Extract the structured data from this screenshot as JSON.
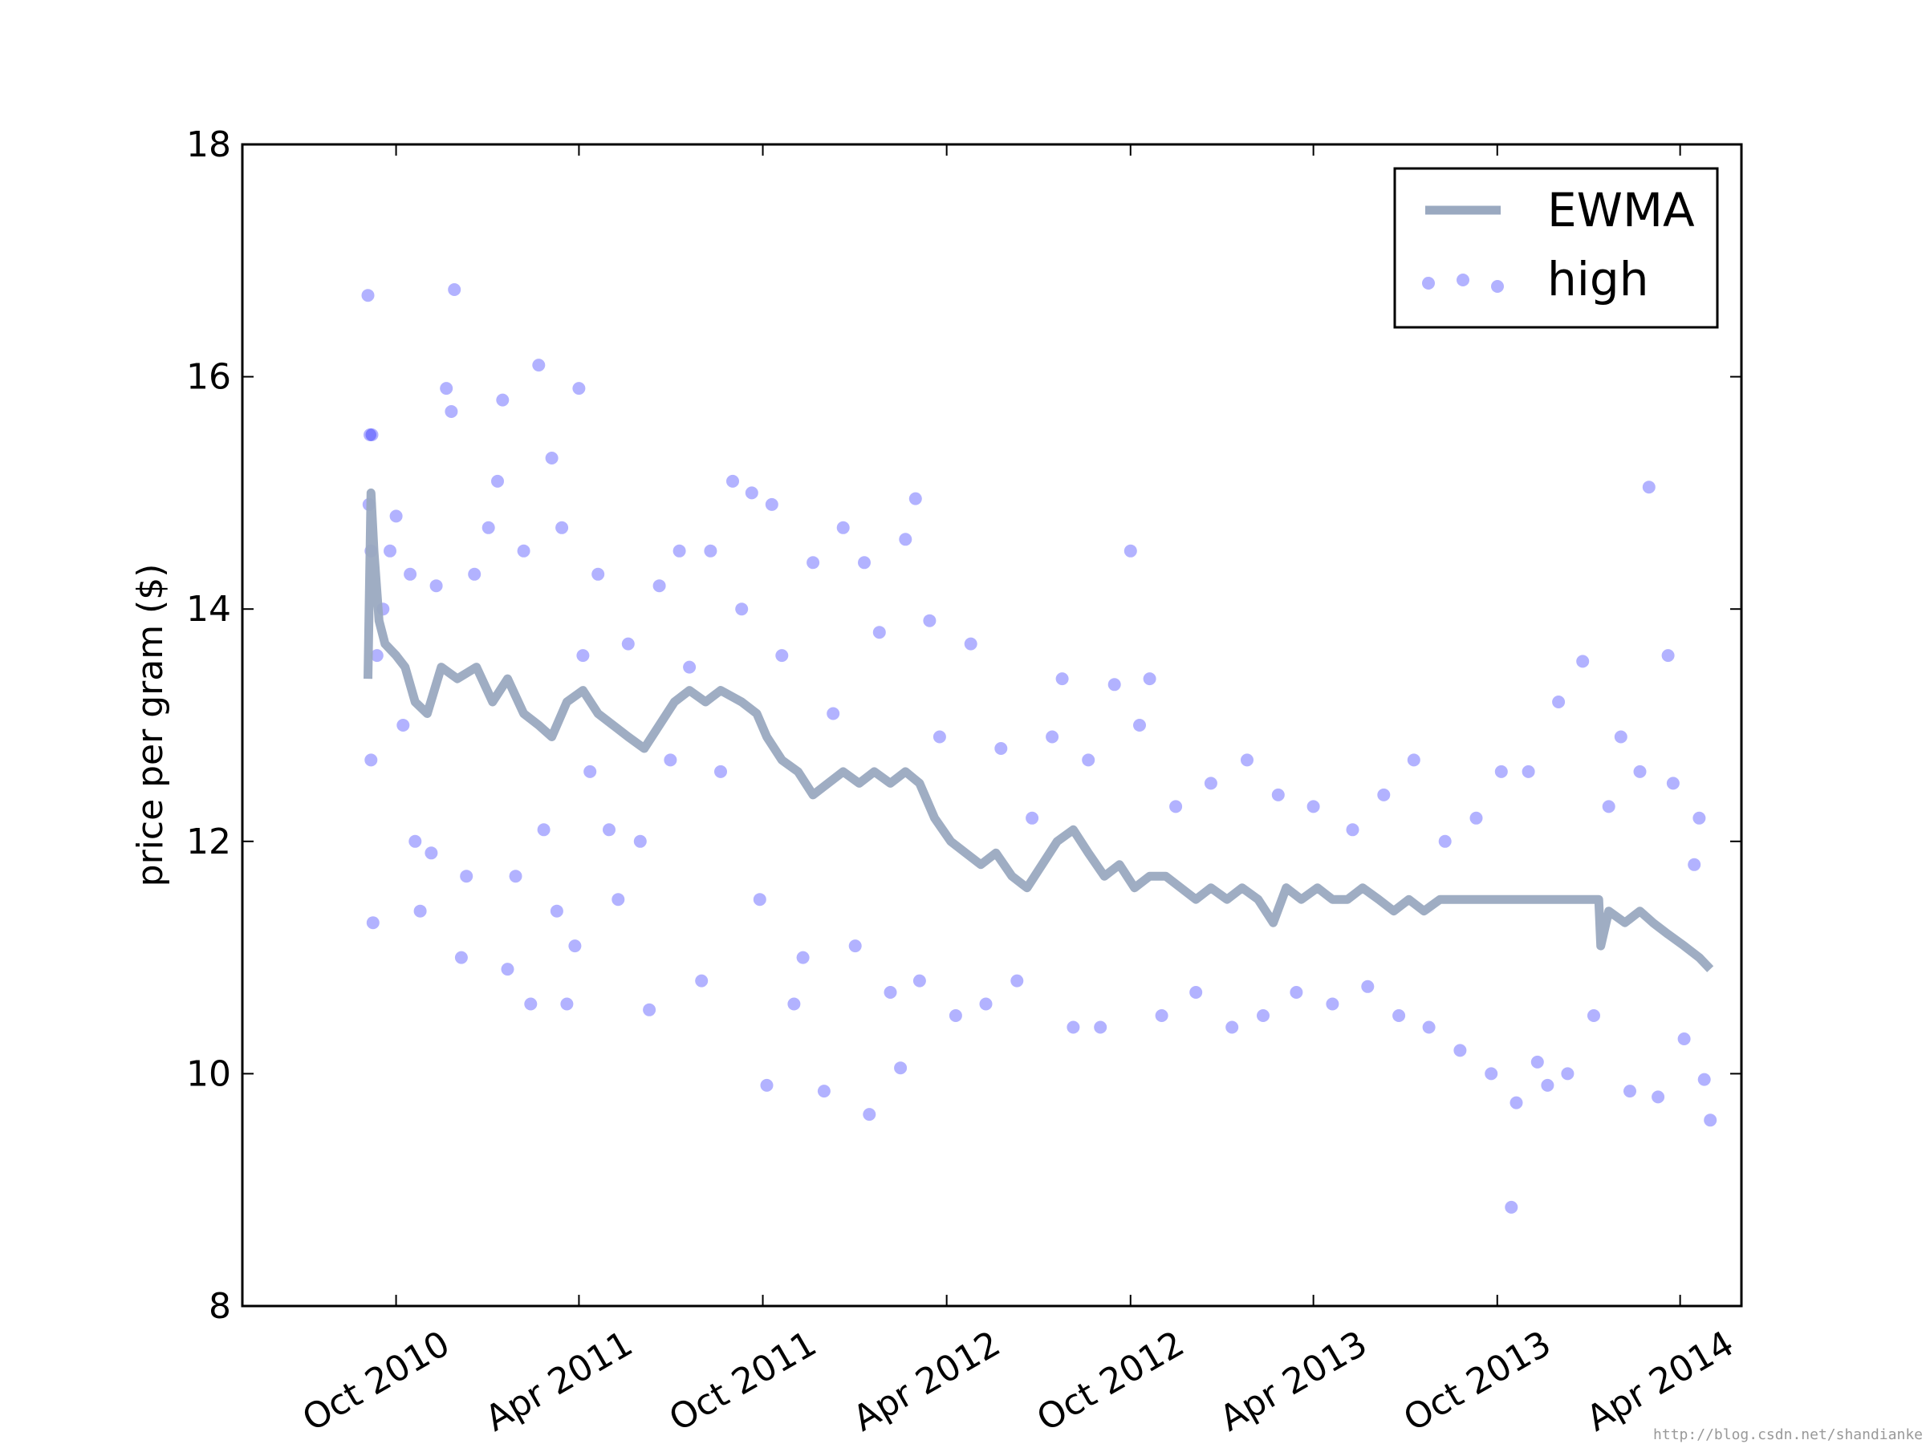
{
  "chart_data": {
    "type": "scatter",
    "title": "",
    "xlabel": "",
    "ylabel": "price per gram ($)",
    "xlim": [
      "2010-05-01",
      "2014-06-01"
    ],
    "ylim": [
      8,
      18
    ],
    "yticks": [
      8,
      10,
      12,
      14,
      16,
      18
    ],
    "xticks": [
      {
        "date": "2010-10-01",
        "label": "Oct 2010"
      },
      {
        "date": "2011-04-01",
        "label": "Apr 2011"
      },
      {
        "date": "2011-10-01",
        "label": "Oct 2011"
      },
      {
        "date": "2012-04-01",
        "label": "Apr 2012"
      },
      {
        "date": "2012-10-01",
        "label": "Oct 2012"
      },
      {
        "date": "2013-04-01",
        "label": "Apr 2013"
      },
      {
        "date": "2013-10-01",
        "label": "Oct 2013"
      },
      {
        "date": "2014-04-01",
        "label": "Apr 2014"
      }
    ],
    "grid": false,
    "legend": "top-right",
    "series": [
      {
        "name": "EWMA",
        "kind": "line",
        "color": "#9aa9c0",
        "points": [
          [
            "2010-09-03",
            13.4
          ],
          [
            "2010-09-06",
            15.0
          ],
          [
            "2010-09-09",
            14.5
          ],
          [
            "2010-09-14",
            13.9
          ],
          [
            "2010-09-20",
            13.7
          ],
          [
            "2010-10-01",
            13.6
          ],
          [
            "2010-10-10",
            13.5
          ],
          [
            "2010-10-20",
            13.2
          ],
          [
            "2010-11-01",
            13.1
          ],
          [
            "2010-11-15",
            13.5
          ],
          [
            "2010-12-01",
            13.4
          ],
          [
            "2010-12-20",
            13.5
          ],
          [
            "2011-01-05",
            13.2
          ],
          [
            "2011-01-20",
            13.4
          ],
          [
            "2011-02-05",
            13.1
          ],
          [
            "2011-02-20",
            13.0
          ],
          [
            "2011-03-05",
            12.9
          ],
          [
            "2011-03-20",
            13.2
          ],
          [
            "2011-04-05",
            13.3
          ],
          [
            "2011-04-20",
            13.1
          ],
          [
            "2011-05-05",
            13.0
          ],
          [
            "2011-05-20",
            12.9
          ],
          [
            "2011-06-05",
            12.8
          ],
          [
            "2011-06-20",
            13.0
          ],
          [
            "2011-07-05",
            13.2
          ],
          [
            "2011-07-20",
            13.3
          ],
          [
            "2011-08-05",
            13.2
          ],
          [
            "2011-08-20",
            13.3
          ],
          [
            "2011-09-10",
            13.2
          ],
          [
            "2011-09-25",
            13.1
          ],
          [
            "2011-10-05",
            12.9
          ],
          [
            "2011-10-20",
            12.7
          ],
          [
            "2011-11-05",
            12.6
          ],
          [
            "2011-11-20",
            12.4
          ],
          [
            "2011-12-05",
            12.5
          ],
          [
            "2011-12-20",
            12.6
          ],
          [
            "2012-01-05",
            12.5
          ],
          [
            "2012-01-20",
            12.6
          ],
          [
            "2012-02-05",
            12.5
          ],
          [
            "2012-02-20",
            12.6
          ],
          [
            "2012-03-05",
            12.5
          ],
          [
            "2012-03-20",
            12.2
          ],
          [
            "2012-04-05",
            12.0
          ],
          [
            "2012-04-20",
            11.9
          ],
          [
            "2012-05-05",
            11.8
          ],
          [
            "2012-05-20",
            11.9
          ],
          [
            "2012-06-05",
            11.7
          ],
          [
            "2012-06-20",
            11.6
          ],
          [
            "2012-07-05",
            11.8
          ],
          [
            "2012-07-20",
            12.0
          ],
          [
            "2012-08-05",
            12.1
          ],
          [
            "2012-08-20",
            11.9
          ],
          [
            "2012-09-05",
            11.7
          ],
          [
            "2012-09-20",
            11.8
          ],
          [
            "2012-10-05",
            11.6
          ],
          [
            "2012-10-20",
            11.7
          ],
          [
            "2012-11-05",
            11.7
          ],
          [
            "2012-11-20",
            11.6
          ],
          [
            "2012-12-05",
            11.5
          ],
          [
            "2012-12-20",
            11.6
          ],
          [
            "2013-01-05",
            11.5
          ],
          [
            "2013-01-20",
            11.6
          ],
          [
            "2013-02-05",
            11.5
          ],
          [
            "2013-02-20",
            11.3
          ],
          [
            "2013-03-05",
            11.6
          ],
          [
            "2013-03-20",
            11.5
          ],
          [
            "2013-04-05",
            11.6
          ],
          [
            "2013-04-20",
            11.5
          ],
          [
            "2013-05-05",
            11.5
          ],
          [
            "2013-05-20",
            11.6
          ],
          [
            "2013-06-05",
            11.5
          ],
          [
            "2013-06-20",
            11.4
          ],
          [
            "2013-07-05",
            11.5
          ],
          [
            "2013-07-20",
            11.4
          ],
          [
            "2013-08-05",
            11.5
          ],
          [
            "2013-08-20",
            11.5
          ],
          [
            "2013-09-20",
            11.5
          ],
          [
            "2013-10-20",
            11.5
          ],
          [
            "2013-11-20",
            11.5
          ],
          [
            "2013-12-20",
            11.5
          ],
          [
            "2014-01-10",
            11.5
          ],
          [
            "2014-01-12",
            11.1
          ],
          [
            "2014-01-20",
            11.4
          ],
          [
            "2014-02-05",
            11.3
          ],
          [
            "2014-02-20",
            11.4
          ],
          [
            "2014-03-05",
            11.3
          ],
          [
            "2014-03-20",
            11.2
          ],
          [
            "2014-04-05",
            11.1
          ],
          [
            "2014-04-20",
            11.0
          ],
          [
            "2014-05-01",
            10.9
          ]
        ]
      },
      {
        "name": "high",
        "kind": "scatter",
        "color": "#0000ff",
        "opacity": 0.3,
        "points": [
          [
            "2010-09-03",
            16.7
          ],
          [
            "2010-09-05",
            15.5
          ],
          [
            "2010-09-07",
            15.5
          ],
          [
            "2010-09-04",
            14.9
          ],
          [
            "2010-09-06",
            14.5
          ],
          [
            "2010-09-06",
            12.7
          ],
          [
            "2010-09-08",
            11.3
          ],
          [
            "2010-09-12",
            13.6
          ],
          [
            "2010-09-18",
            14.0
          ],
          [
            "2010-09-25",
            14.5
          ],
          [
            "2010-10-01",
            14.8
          ],
          [
            "2010-10-08",
            13.0
          ],
          [
            "2010-10-15",
            14.3
          ],
          [
            "2010-10-20",
            12.0
          ],
          [
            "2010-10-25",
            11.4
          ],
          [
            "2010-11-05",
            11.9
          ],
          [
            "2010-11-10",
            14.2
          ],
          [
            "2010-11-20",
            15.9
          ],
          [
            "2010-11-25",
            15.7
          ],
          [
            "2010-11-28",
            16.75
          ],
          [
            "2010-12-05",
            11.0
          ],
          [
            "2010-12-10",
            11.7
          ],
          [
            "2010-12-18",
            14.3
          ],
          [
            "2011-01-01",
            14.7
          ],
          [
            "2011-01-10",
            15.1
          ],
          [
            "2011-01-15",
            15.8
          ],
          [
            "2011-01-20",
            10.9
          ],
          [
            "2011-01-28",
            11.7
          ],
          [
            "2011-02-05",
            14.5
          ],
          [
            "2011-02-12",
            10.6
          ],
          [
            "2011-02-20",
            16.1
          ],
          [
            "2011-02-25",
            12.1
          ],
          [
            "2011-03-05",
            15.3
          ],
          [
            "2011-03-10",
            11.4
          ],
          [
            "2011-03-15",
            14.7
          ],
          [
            "2011-03-20",
            10.6
          ],
          [
            "2011-03-28",
            11.1
          ],
          [
            "2011-04-01",
            15.9
          ],
          [
            "2011-04-05",
            13.6
          ],
          [
            "2011-04-12",
            12.6
          ],
          [
            "2011-04-20",
            14.3
          ],
          [
            "2011-05-01",
            12.1
          ],
          [
            "2011-05-10",
            11.5
          ],
          [
            "2011-05-20",
            13.7
          ],
          [
            "2011-06-01",
            12.0
          ],
          [
            "2011-06-10",
            10.55
          ],
          [
            "2011-06-20",
            14.2
          ],
          [
            "2011-07-01",
            12.7
          ],
          [
            "2011-07-10",
            14.5
          ],
          [
            "2011-07-20",
            13.5
          ],
          [
            "2011-08-01",
            10.8
          ],
          [
            "2011-08-10",
            14.5
          ],
          [
            "2011-08-20",
            12.6
          ],
          [
            "2011-09-01",
            15.1
          ],
          [
            "2011-09-10",
            14.0
          ],
          [
            "2011-09-20",
            15.0
          ],
          [
            "2011-09-28",
            11.5
          ],
          [
            "2011-10-05",
            9.9
          ],
          [
            "2011-10-10",
            14.9
          ],
          [
            "2011-10-20",
            13.6
          ],
          [
            "2011-11-01",
            10.6
          ],
          [
            "2011-11-10",
            11.0
          ],
          [
            "2011-11-20",
            14.4
          ],
          [
            "2011-12-01",
            9.85
          ],
          [
            "2011-12-10",
            13.1
          ],
          [
            "2011-12-20",
            14.7
          ],
          [
            "2012-01-01",
            11.1
          ],
          [
            "2012-01-10",
            14.4
          ],
          [
            "2012-01-15",
            9.65
          ],
          [
            "2012-01-25",
            13.8
          ],
          [
            "2012-02-05",
            10.7
          ],
          [
            "2012-02-15",
            10.05
          ],
          [
            "2012-02-20",
            14.6
          ],
          [
            "2012-03-01",
            14.95
          ],
          [
            "2012-03-05",
            10.8
          ],
          [
            "2012-03-15",
            13.9
          ],
          [
            "2012-03-25",
            12.9
          ],
          [
            "2012-04-10",
            10.5
          ],
          [
            "2012-04-25",
            13.7
          ],
          [
            "2012-05-10",
            10.6
          ],
          [
            "2012-05-25",
            12.8
          ],
          [
            "2012-06-10",
            10.8
          ],
          [
            "2012-06-25",
            12.2
          ],
          [
            "2012-07-15",
            12.9
          ],
          [
            "2012-07-25",
            13.4
          ],
          [
            "2012-08-05",
            10.4
          ],
          [
            "2012-08-20",
            12.7
          ],
          [
            "2012-09-01",
            10.4
          ],
          [
            "2012-09-15",
            13.35
          ],
          [
            "2012-10-01",
            14.5
          ],
          [
            "2012-10-10",
            13.0
          ],
          [
            "2012-10-20",
            13.4
          ],
          [
            "2012-11-01",
            10.5
          ],
          [
            "2012-11-15",
            12.3
          ],
          [
            "2012-12-05",
            10.7
          ],
          [
            "2012-12-20",
            12.5
          ],
          [
            "2013-01-10",
            10.4
          ],
          [
            "2013-01-25",
            12.7
          ],
          [
            "2013-02-10",
            10.5
          ],
          [
            "2013-02-25",
            12.4
          ],
          [
            "2013-03-15",
            10.7
          ],
          [
            "2013-04-01",
            12.3
          ],
          [
            "2013-04-20",
            10.6
          ],
          [
            "2013-05-10",
            12.1
          ],
          [
            "2013-05-25",
            10.75
          ],
          [
            "2013-06-10",
            12.4
          ],
          [
            "2013-06-25",
            10.5
          ],
          [
            "2013-07-10",
            12.7
          ],
          [
            "2013-07-25",
            10.4
          ],
          [
            "2013-08-10",
            12.0
          ],
          [
            "2013-08-25",
            10.2
          ],
          [
            "2013-09-10",
            12.2
          ],
          [
            "2013-09-25",
            10.0
          ],
          [
            "2013-10-05",
            12.6
          ],
          [
            "2013-10-15",
            8.85
          ],
          [
            "2013-10-20",
            9.75
          ],
          [
            "2013-11-01",
            12.6
          ],
          [
            "2013-11-10",
            10.1
          ],
          [
            "2013-11-20",
            9.9
          ],
          [
            "2013-12-01",
            13.2
          ],
          [
            "2013-12-10",
            10.0
          ],
          [
            "2013-12-25",
            13.55
          ],
          [
            "2014-01-05",
            10.5
          ],
          [
            "2014-01-20",
            12.3
          ],
          [
            "2014-02-01",
            12.9
          ],
          [
            "2014-02-10",
            9.85
          ],
          [
            "2014-02-20",
            12.6
          ],
          [
            "2014-03-01",
            15.05
          ],
          [
            "2014-03-10",
            9.8
          ],
          [
            "2014-03-20",
            13.6
          ],
          [
            "2014-03-25",
            12.5
          ],
          [
            "2014-04-05",
            10.3
          ],
          [
            "2014-04-15",
            11.8
          ],
          [
            "2014-04-20",
            12.2
          ],
          [
            "2014-04-25",
            9.95
          ],
          [
            "2014-05-01",
            9.6
          ]
        ]
      }
    ]
  },
  "watermark": "http://blog.csdn.net/shandianke"
}
